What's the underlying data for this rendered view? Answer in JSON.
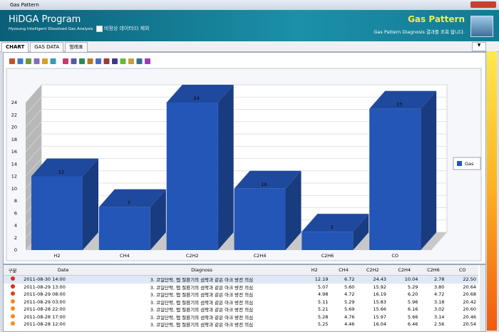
{
  "window": {
    "title": "Gas Pattern"
  },
  "header": {
    "app_name": "HiDGA Program",
    "app_subtitle": "Hyosung Intelligent Dissolved Gas Analysis",
    "checkbox_label": "비정상 데이터(I) 제외",
    "page_title": "Gas Pattern",
    "page_description": "Gas Pattern Diagnosis 결과를 조회 합니다."
  },
  "tabs": [
    "CHART",
    "GAS DATA",
    "범례표"
  ],
  "chart_data": {
    "type": "bar",
    "categories": [
      "H2",
      "CH4",
      "C2H2",
      "C2H4",
      "C2H6",
      "CO"
    ],
    "series": [
      {
        "name": "Gas",
        "color": "#2456b8",
        "values": [
          12,
          7,
          24,
          10,
          3,
          23
        ]
      }
    ],
    "ylim": [
      0,
      24
    ],
    "yticks": [
      0,
      2,
      4,
      6,
      8,
      10,
      12,
      14,
      16,
      18,
      20,
      22,
      24
    ],
    "grid": true,
    "legend": "right"
  },
  "table": {
    "columns": [
      "구분",
      "Date",
      "Diagnoss",
      "H2",
      "CH4",
      "C2H2",
      "C2H4",
      "C2H6",
      "CO"
    ],
    "rows": [
      [
        "2011-08-30 14:00",
        "3. 코일단락, 탭 절환기의 섬락과 같은 아크 방전 의심",
        "12.19",
        "6.72",
        "24.43",
        "10.04",
        "2.78",
        "22.50"
      ],
      [
        "2011-08-29 13:00",
        "3. 코일단락, 탭 절환기의 섬락과 같은 아크 방전 의심",
        "5.07",
        "5.60",
        "15.92",
        "5.29",
        "3.80",
        "20.64"
      ],
      [
        "2011-08-29 08:00",
        "3. 코일단락, 탭 절환기의 섬락과 같은 아크 방전 의심",
        "4.98",
        "4.72",
        "16.19",
        "6.20",
        "4.72",
        "20.68"
      ],
      [
        "2011-08-29 03:00",
        "3. 코일단락, 탭 절환기의 섬락과 같은 아크 방전 의심",
        "5.11",
        "5.29",
        "15.83",
        "5.96",
        "3.18",
        "20.42"
      ],
      [
        "2011-08-28 22:00",
        "3. 코일단락, 탭 절환기의 섬락과 같은 아크 방전 의심",
        "5.21",
        "5.69",
        "15.66",
        "6.16",
        "3.02",
        "20.60"
      ],
      [
        "2011-08-28 17:00",
        "3. 코일단락, 탭 절환기의 섬락과 같은 아크 방전 의심",
        "5.28",
        "4.76",
        "15.97",
        "5.66",
        "3.14",
        "20.46"
      ],
      [
        "2011-08-28 12:00",
        "3. 코일단락, 탭 절환기의 섬락과 같은 아크 방전 의심",
        "5.25",
        "4.46",
        "16.04",
        "6.46",
        "2.56",
        "20.54"
      ]
    ]
  }
}
